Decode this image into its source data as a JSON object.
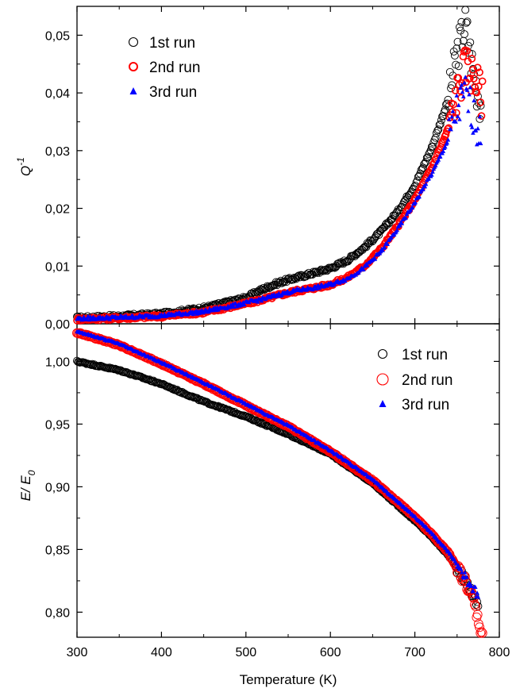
{
  "chart_data": [
    {
      "type": "scatter",
      "panel": "top",
      "xlabel": "",
      "ylabel_main": "Q",
      "ylabel_sup": "-1",
      "xlim": [
        300,
        800
      ],
      "ylim": [
        0.0,
        0.055
      ],
      "yticks": [
        0.0,
        0.01,
        0.02,
        0.03,
        0.04,
        0.05
      ],
      "ytick_labels": [
        "0,00",
        "0,01",
        "0,02",
        "0,03",
        "0,04",
        "0,05"
      ],
      "legend_position": "top-left",
      "series": [
        {
          "name": "1st run",
          "marker": "open-circle",
          "color": "#000000",
          "x": [
            300,
            350,
            400,
            450,
            500,
            520,
            540,
            560,
            580,
            600,
            620,
            640,
            660,
            680,
            700,
            720,
            740,
            750,
            760,
            770,
            778
          ],
          "y": [
            0.001,
            0.0013,
            0.0017,
            0.0027,
            0.0045,
            0.006,
            0.0072,
            0.008,
            0.0088,
            0.0096,
            0.011,
            0.0132,
            0.016,
            0.0195,
            0.024,
            0.0305,
            0.039,
            0.047,
            0.052,
            0.043,
            0.038
          ]
        },
        {
          "name": "2nd run",
          "marker": "open-circle",
          "color": "#ff0000",
          "x": [
            300,
            350,
            400,
            450,
            500,
            520,
            540,
            560,
            580,
            600,
            620,
            640,
            660,
            680,
            700,
            720,
            740,
            750,
            760,
            770,
            780
          ],
          "y": [
            0.0008,
            0.001,
            0.0013,
            0.002,
            0.0035,
            0.0042,
            0.005,
            0.0057,
            0.0062,
            0.0068,
            0.008,
            0.01,
            0.013,
            0.017,
            0.0215,
            0.027,
            0.034,
            0.04,
            0.045,
            0.043,
            0.039
          ]
        },
        {
          "name": "3rd run",
          "marker": "filled-triangle",
          "color": "#0000ff",
          "x": [
            300,
            350,
            400,
            450,
            500,
            520,
            540,
            560,
            580,
            600,
            620,
            640,
            660,
            680,
            700,
            720,
            740,
            750,
            760,
            770,
            778
          ],
          "y": [
            0.0009,
            0.0011,
            0.0014,
            0.0021,
            0.0036,
            0.0043,
            0.0051,
            0.0058,
            0.0062,
            0.0068,
            0.0078,
            0.0097,
            0.0125,
            0.0165,
            0.021,
            0.026,
            0.032,
            0.037,
            0.04,
            0.036,
            0.032
          ]
        }
      ]
    },
    {
      "type": "scatter",
      "panel": "bottom",
      "xlabel": "Temperature (K)",
      "ylabel_main": "E/ E",
      "ylabel_sub": "0",
      "xlim": [
        300,
        800
      ],
      "ylim": [
        0.78,
        1.03
      ],
      "xticks": [
        300,
        400,
        500,
        600,
        700,
        800
      ],
      "xtick_labels": [
        "300",
        "400",
        "500",
        "600",
        "700",
        "800"
      ],
      "yticks": [
        0.8,
        0.85,
        0.9,
        0.95,
        1.0
      ],
      "ytick_labels": [
        "0,80",
        "0,85",
        "0,90",
        "0,95",
        "1,00"
      ],
      "legend_position": "top-right",
      "series": [
        {
          "name": "1st run",
          "marker": "open-circle",
          "color": "#000000",
          "x": [
            300,
            350,
            400,
            450,
            500,
            550,
            600,
            650,
            700,
            720,
            740,
            760,
            775
          ],
          "y": [
            1.0,
            0.993,
            0.982,
            0.968,
            0.956,
            0.942,
            0.926,
            0.903,
            0.873,
            0.86,
            0.845,
            0.825,
            0.805
          ]
        },
        {
          "name": "2nd run",
          "marker": "open-circle",
          "color": "#ff0000",
          "x": [
            300,
            350,
            400,
            450,
            500,
            550,
            600,
            650,
            700,
            720,
            740,
            760,
            770,
            775,
            780
          ],
          "y": [
            1.023,
            1.013,
            0.998,
            0.982,
            0.965,
            0.948,
            0.928,
            0.905,
            0.876,
            0.862,
            0.847,
            0.824,
            0.808,
            0.793,
            0.78
          ]
        },
        {
          "name": "3rd run",
          "marker": "filled-triangle",
          "color": "#0000ff",
          "x": [
            300,
            350,
            400,
            450,
            500,
            550,
            600,
            650,
            700,
            720,
            740,
            760,
            775
          ],
          "y": [
            1.024,
            1.014,
            0.999,
            0.983,
            0.966,
            0.949,
            0.929,
            0.906,
            0.876,
            0.863,
            0.848,
            0.828,
            0.813
          ]
        }
      ]
    }
  ]
}
